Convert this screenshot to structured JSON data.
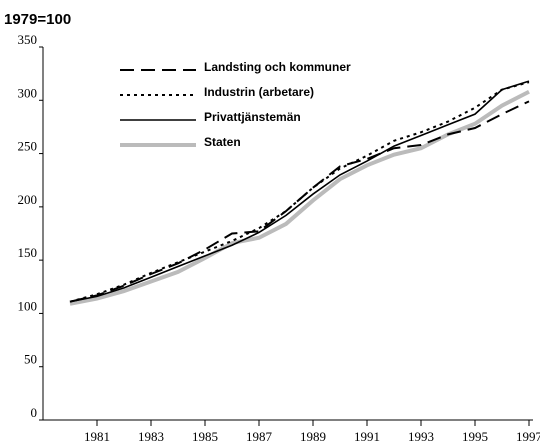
{
  "chart_data": {
    "type": "line",
    "title": "1979=100",
    "x": [
      1980,
      1981,
      1982,
      1983,
      1984,
      1985,
      1986,
      1987,
      1988,
      1989,
      1990,
      1991,
      1992,
      1993,
      1994,
      1995,
      1996,
      1997
    ],
    "series": [
      {
        "name": "Landsting och kommuner",
        "color": "#000000",
        "dash": "14 7",
        "width": 2,
        "values": [
          111,
          117,
          126,
          137,
          147,
          160,
          175,
          177,
          196,
          218,
          238,
          245,
          255,
          258,
          268,
          274,
          287,
          299
        ]
      },
      {
        "name": "Industrin (arbetare)",
        "color": "#000000",
        "dash": "3 4",
        "width": 2,
        "values": [
          111,
          118,
          127,
          138,
          148,
          158,
          168,
          180,
          196,
          218,
          236,
          248,
          262,
          270,
          280,
          293,
          310,
          317
        ]
      },
      {
        "name": "Privattjänstemän",
        "color": "#000000",
        "dash": "",
        "width": 1.6,
        "values": [
          111,
          116,
          124,
          134,
          144,
          154,
          164,
          176,
          192,
          212,
          230,
          243,
          257,
          267,
          277,
          287,
          310,
          318
        ]
      },
      {
        "name": "Staten",
        "color": "#bbbbbb",
        "dash": "",
        "width": 4,
        "values": [
          109,
          114,
          121,
          130,
          139,
          152,
          166,
          171,
          184,
          206,
          226,
          239,
          249,
          255,
          268,
          278,
          295,
          308
        ]
      }
    ],
    "xlim": [
      1979,
      1997
    ],
    "xticks": [
      1981,
      1983,
      1985,
      1987,
      1989,
      1991,
      1993,
      1995,
      1997
    ],
    "ylim": [
      0,
      350
    ],
    "yticks": [
      0,
      50,
      100,
      150,
      200,
      250,
      300,
      350
    ],
    "grid": false
  }
}
